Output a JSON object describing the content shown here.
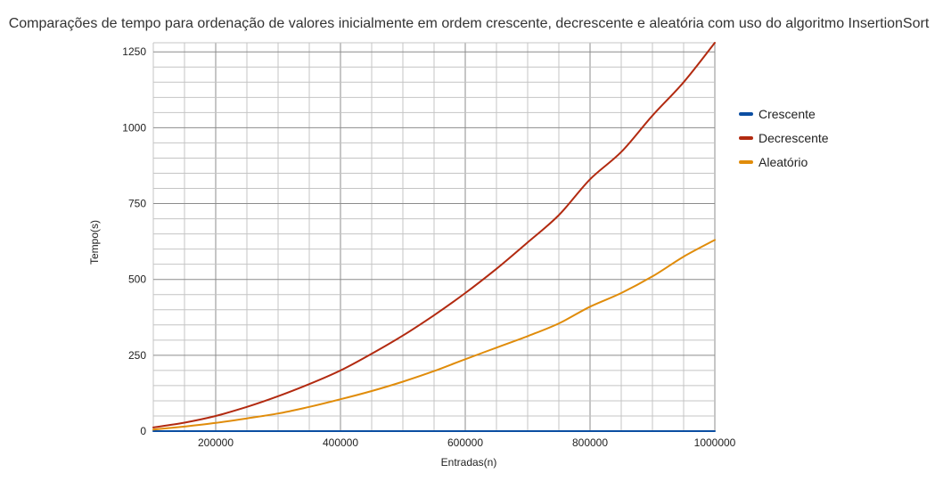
{
  "chart_data": {
    "type": "line",
    "title": "Comparações de tempo para ordenação de valores inicialmente em ordem crescente, decrescente e aleatória com uso do algoritmo InsertionSort",
    "xlabel": "Entradas(n)",
    "ylabel": "Tempo(s)",
    "xlim": [
      100000,
      1000000
    ],
    "ylim": [
      0,
      1280
    ],
    "x_ticks": [
      200000,
      400000,
      600000,
      800000,
      1000000
    ],
    "y_ticks": [
      0,
      250,
      500,
      750,
      1000,
      1250
    ],
    "grid": true,
    "legend_position": "right",
    "x": [
      100000,
      150000,
      200000,
      250000,
      300000,
      350000,
      400000,
      450000,
      500000,
      550000,
      600000,
      650000,
      700000,
      750000,
      800000,
      850000,
      900000,
      950000,
      1000000
    ],
    "series": [
      {
        "name": "Crescente",
        "color": "#0b4ea2",
        "values": [
          0,
          0,
          0,
          0,
          0,
          0,
          0,
          0,
          0,
          0,
          0,
          0,
          0,
          0,
          0,
          0,
          0,
          0,
          0
        ]
      },
      {
        "name": "Decrescente",
        "color": "#b22a10",
        "values": [
          12,
          28,
          50,
          80,
          115,
          155,
          200,
          255,
          315,
          382,
          455,
          535,
          622,
          712,
          830,
          920,
          1040,
          1150,
          1280
        ]
      },
      {
        "name": "Aleatório",
        "color": "#e08c0a",
        "values": [
          5,
          15,
          27,
          42,
          58,
          80,
          105,
          132,
          163,
          198,
          237,
          275,
          313,
          355,
          410,
          455,
          510,
          575,
          630
        ]
      }
    ]
  }
}
